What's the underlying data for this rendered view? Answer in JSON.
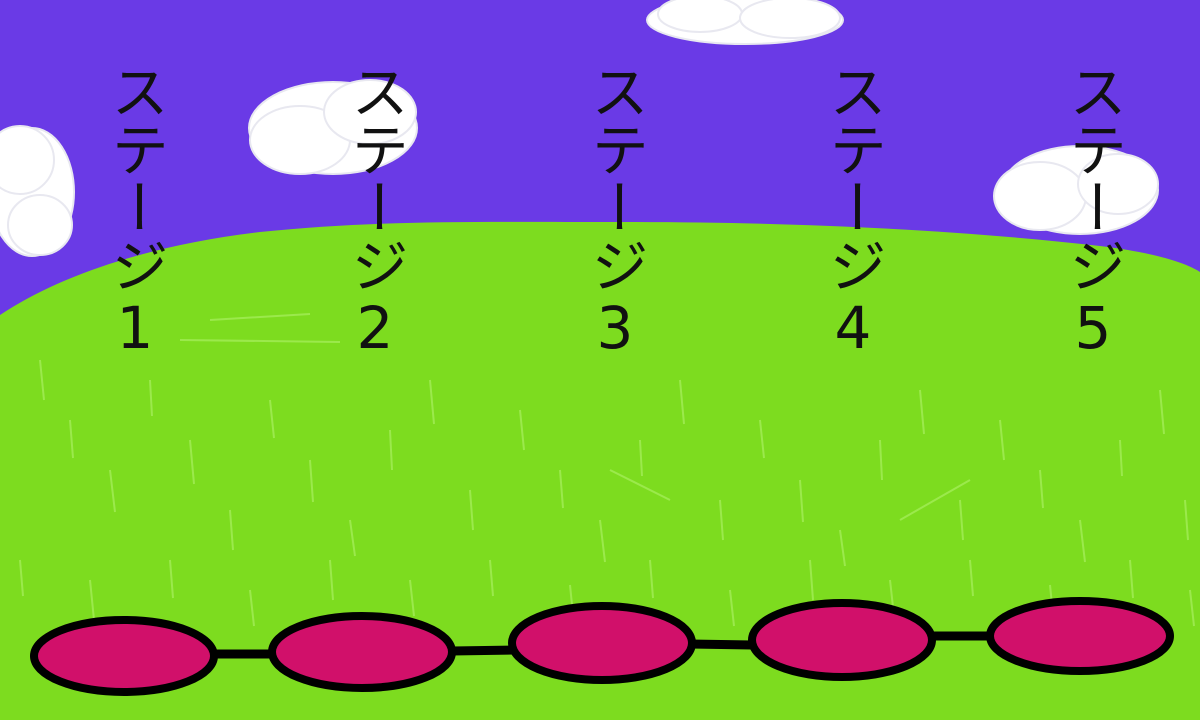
{
  "scene": {
    "sky_color": "#6a3ae6",
    "grass_color": "#7ddc1f",
    "grass_texture_color": "#a6ee5c",
    "cloud_color": "#ffffff",
    "node_fill_color": "#d1106a",
    "node_outline_color": "#000000",
    "label_color": "#111111"
  },
  "stages": [
    {
      "label": "ステージ1"
    },
    {
      "label": "ステージ2"
    },
    {
      "label": "ステージ3"
    },
    {
      "label": "ステージ4"
    },
    {
      "label": "ステージ5"
    }
  ]
}
